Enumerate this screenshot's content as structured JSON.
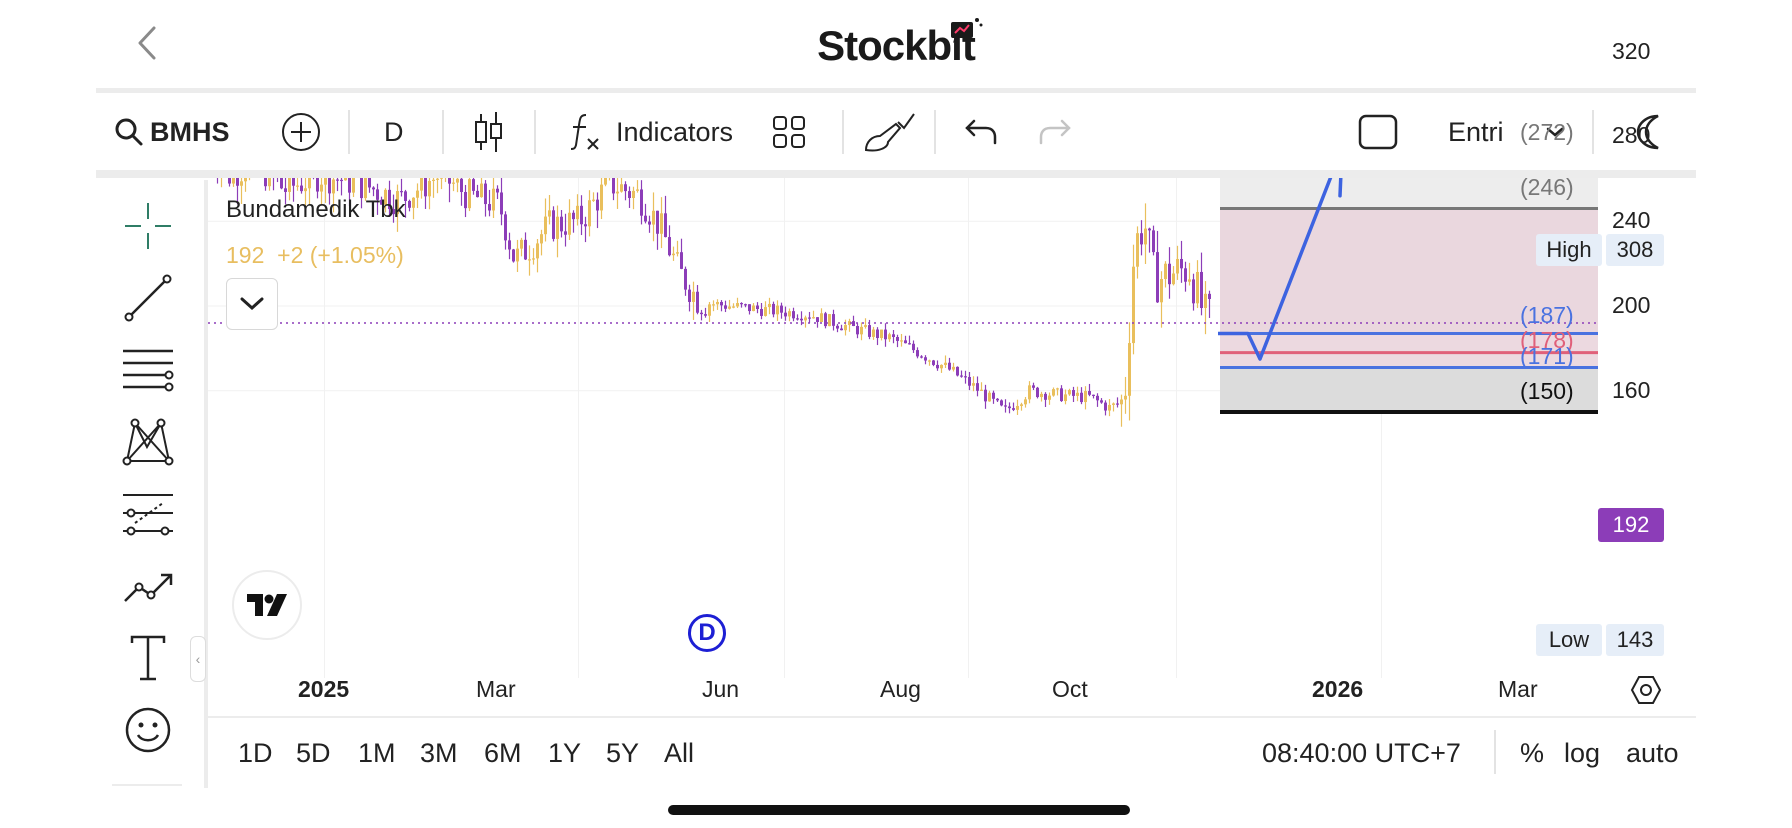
{
  "header": {
    "logo_text": "Stockbit"
  },
  "toolbar": {
    "symbol": "BMHS",
    "interval": "D",
    "indicators_label": "Indicators",
    "layout_label": "Entri"
  },
  "chart": {
    "ticker_name": "Bundamedik Tbk",
    "price_info": "192  +2 (+1.05%)",
    "dividend_marker": "D",
    "y_ticks": [
      "320",
      "280",
      "240",
      "200",
      "160"
    ],
    "x_ticks": [
      {
        "label": "2025",
        "bold": true
      },
      {
        "label": "Mar",
        "bold": false
      },
      {
        "label": "Jun",
        "bold": false
      },
      {
        "label": "Aug",
        "bold": false
      },
      {
        "label": "Oct",
        "bold": false
      },
      {
        "label": "2026",
        "bold": true
      },
      {
        "label": "Mar",
        "bold": false
      }
    ],
    "high_label": "High",
    "high_value": "308",
    "low_label": "Low",
    "low_value": "143",
    "current_price": "192",
    "levels": [
      {
        "label": "(272)",
        "value": 272,
        "color": "#777777"
      },
      {
        "label": "(246)",
        "value": 246,
        "color": "#777777"
      },
      {
        "label": "(187)",
        "value": 187,
        "color": "#4a72e0"
      },
      {
        "label": "(178)",
        "value": 178,
        "color": "#e0607a"
      },
      {
        "label": "(171)",
        "value": 171,
        "color": "#4a72e0"
      },
      {
        "label": "(150)",
        "value": 150,
        "color": "#111111"
      }
    ],
    "colors": {
      "up": "#e9bf5c",
      "down": "#8c3db8",
      "price_badge": "#8c3db8",
      "arrow": "#3d63e0"
    }
  },
  "bottom": {
    "ranges": [
      "1D",
      "5D",
      "1M",
      "3M",
      "6M",
      "1Y",
      "5Y",
      "All"
    ],
    "time": "08:40:00 UTC+7",
    "percent": "%",
    "log": "log",
    "auto": "auto"
  }
}
